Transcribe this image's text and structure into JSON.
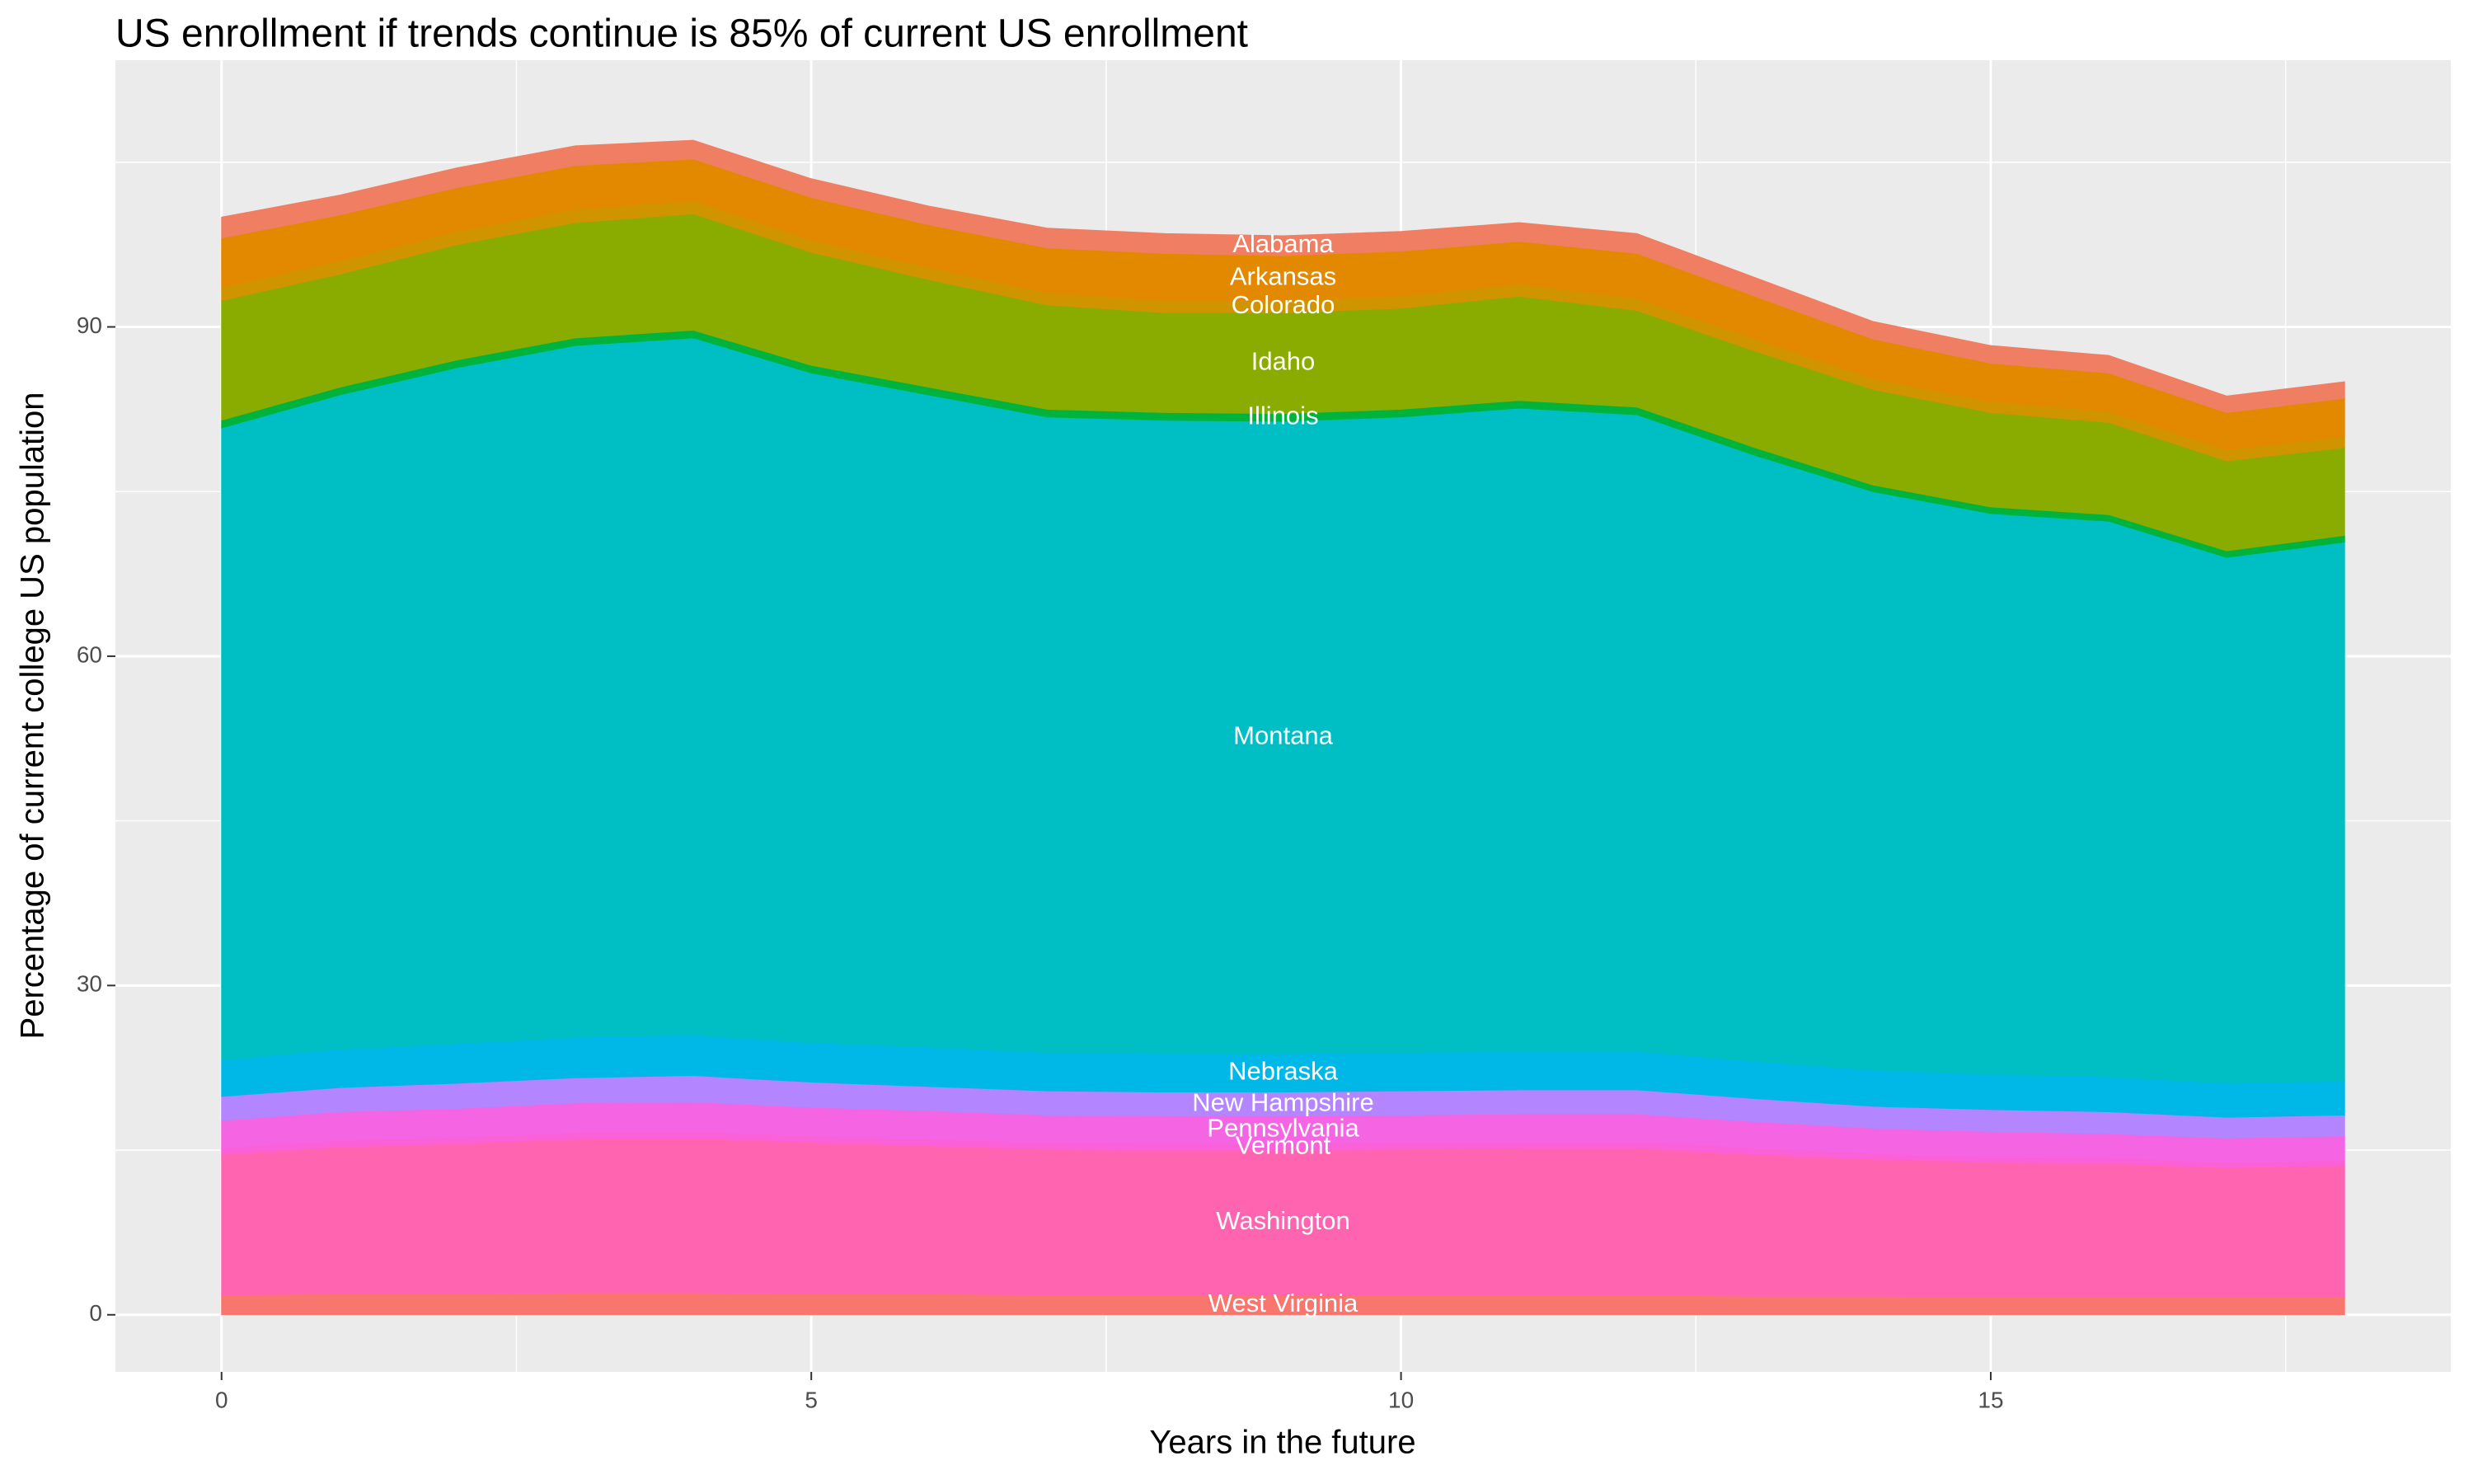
{
  "chart_data": {
    "type": "stacked_area",
    "title": "US enrollment if trends continue is 85% of current US enrollment",
    "x_label": "Years in the future",
    "y_label": "Percentage of current college US population",
    "x": [
      0,
      1,
      2,
      3,
      4,
      5,
      6,
      7,
      8,
      9,
      10,
      11,
      12,
      13,
      14,
      15,
      16,
      17,
      18
    ],
    "xlim": [
      -0.9,
      18.9
    ],
    "xticks": [
      0,
      5,
      10,
      15
    ],
    "ylim": [
      -5.2,
      114.3
    ],
    "yticks": [
      0,
      30,
      60,
      90
    ],
    "grid": true,
    "series": [
      {
        "name": "West Virginia",
        "color": "#F8766D",
        "values": [
          1.8,
          1.9,
          1.9,
          2.0,
          2.0,
          1.9,
          1.9,
          1.8,
          1.8,
          1.8,
          1.8,
          1.8,
          1.8,
          1.7,
          1.7,
          1.6,
          1.6,
          1.6,
          1.6
        ]
      },
      {
        "name": "Washington",
        "color": "#FF64B0",
        "values": [
          12.8,
          13.4,
          13.7,
          14.0,
          14.1,
          13.8,
          13.5,
          13.3,
          13.2,
          13.2,
          13.3,
          13.4,
          13.4,
          12.9,
          12.5,
          12.3,
          12.2,
          11.8,
          12.0
        ]
      },
      {
        "name": "Vermont",
        "color": "#FB61D7",
        "values": [
          0.6,
          0.6,
          0.6,
          0.6,
          0.6,
          0.6,
          0.6,
          0.6,
          0.6,
          0.6,
          0.6,
          0.6,
          0.6,
          0.6,
          0.5,
          0.5,
          0.5,
          0.5,
          0.5
        ]
      },
      {
        "name": "Pennsylvania",
        "color": "#F564E3",
        "values": [
          2.5,
          2.6,
          2.6,
          2.7,
          2.7,
          2.6,
          2.6,
          2.5,
          2.5,
          2.5,
          2.5,
          2.5,
          2.5,
          2.4,
          2.3,
          2.3,
          2.2,
          2.2,
          2.2
        ]
      },
      {
        "name": "New Hampshire",
        "color": "#B385FF",
        "values": [
          2.2,
          2.2,
          2.3,
          2.3,
          2.4,
          2.3,
          2.2,
          2.2,
          2.2,
          2.2,
          2.2,
          2.2,
          2.2,
          2.1,
          2.0,
          2.0,
          2.0,
          1.9,
          1.9
        ]
      },
      {
        "name": "Nebraska",
        "color": "#00B8E7",
        "values": [
          3.3,
          3.5,
          3.6,
          3.7,
          3.7,
          3.6,
          3.6,
          3.5,
          3.5,
          3.5,
          3.5,
          3.5,
          3.5,
          3.4,
          3.3,
          3.2,
          3.2,
          3.1,
          3.1
        ]
      },
      {
        "name": "Montana",
        "color": "#00BFC4",
        "values": [
          57.6,
          59.6,
          61.6,
          63.0,
          63.5,
          61.0,
          59.4,
          57.9,
          57.7,
          57.6,
          57.9,
          58.6,
          58.0,
          55.2,
          52.7,
          51.1,
          50.6,
          47.9,
          49.1
        ]
      },
      {
        "name": "Illinois",
        "color": "#00B33C",
        "values": [
          0.7,
          0.7,
          0.7,
          0.7,
          0.7,
          0.7,
          0.7,
          0.7,
          0.7,
          0.7,
          0.7,
          0.7,
          0.7,
          0.7,
          0.6,
          0.6,
          0.6,
          0.6,
          0.6
        ]
      },
      {
        "name": "Idaho",
        "color": "#8AAB00",
        "values": [
          10.9,
          10.3,
          10.5,
          10.5,
          10.6,
          10.3,
          9.8,
          9.5,
          9.1,
          9.2,
          9.2,
          9.5,
          8.8,
          8.8,
          8.7,
          8.6,
          8.4,
          8.2,
          8.0
        ]
      },
      {
        "name": "Colorado",
        "color": "#CF9400",
        "values": [
          1.2,
          1.2,
          1.2,
          1.2,
          1.2,
          1.1,
          1.1,
          1.1,
          1.1,
          1.1,
          1.1,
          1.1,
          1.1,
          1.1,
          1.0,
          1.0,
          1.0,
          1.0,
          1.0
        ]
      },
      {
        "name": "Arkansas",
        "color": "#E38900",
        "values": [
          4.5,
          4.2,
          4.0,
          4.0,
          3.8,
          3.9,
          3.9,
          4.1,
          4.3,
          4.1,
          4.1,
          3.9,
          4.1,
          3.9,
          3.6,
          3.5,
          3.5,
          3.4,
          3.5
        ]
      },
      {
        "name": "Alabama",
        "color": "#F07E62",
        "values": [
          1.9,
          1.8,
          1.8,
          1.8,
          1.7,
          1.7,
          1.7,
          1.8,
          1.8,
          1.8,
          1.8,
          1.7,
          1.8,
          1.7,
          1.6,
          1.6,
          1.6,
          1.5,
          1.5
        ]
      }
    ]
  }
}
